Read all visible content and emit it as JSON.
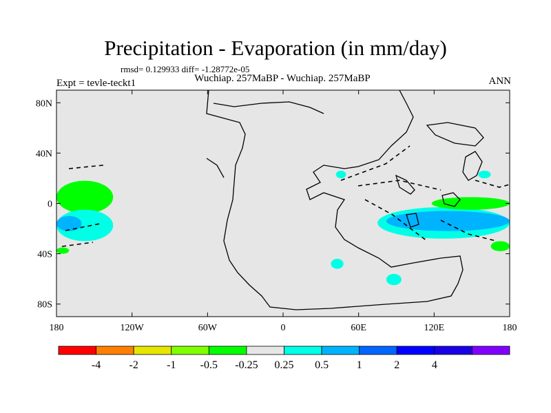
{
  "chart_data": {
    "type": "contour_map",
    "title": "Precipitation - Evaporation (in mm/day)",
    "stats": "rmsd= 0.129933 diff= -1.28772e-05",
    "left_label": "Expt = tevle-teckt1",
    "center_label": "Wuchiap. 257MaBP - Wuchiap. 257MaBP",
    "right_label": "ANN",
    "x_axis": {
      "range": [
        -180,
        180
      ],
      "ticks": [
        {
          "value": -180,
          "label": "180"
        },
        {
          "value": -120,
          "label": "120W"
        },
        {
          "value": -60,
          "label": "60W"
        },
        {
          "value": 0,
          "label": "0"
        },
        {
          "value": 60,
          "label": "60E"
        },
        {
          "value": 120,
          "label": "120E"
        },
        {
          "value": 180,
          "label": "180"
        }
      ]
    },
    "y_axis": {
      "range": [
        -90,
        90
      ],
      "ticks": [
        {
          "value": 80,
          "label": "80N"
        },
        {
          "value": 40,
          "label": "40N"
        },
        {
          "value": 0,
          "label": "0"
        },
        {
          "value": -40,
          "label": "40S"
        },
        {
          "value": -80,
          "label": "80S"
        }
      ]
    },
    "colorbar": {
      "colors": [
        "#ff0000",
        "#ff8000",
        "#e6e600",
        "#80ff00",
        "#00ff00",
        "#e6e6e6",
        "#00ffe6",
        "#00b3ff",
        "#0066ff",
        "#0000ff",
        "#1a00e6",
        "#8000ff"
      ],
      "labels": [
        "-4",
        "-2",
        "-1",
        "-0.5",
        "-0.25",
        "0.25",
        "0.5",
        "1",
        "2",
        "4"
      ]
    },
    "background_color": "#e6e6e6",
    "anomaly_regions": [
      {
        "level": "-0.25",
        "color": "#00ff00",
        "lon": [
          -180,
          -135
        ],
        "lat": [
          -8,
          18
        ]
      },
      {
        "level": "0.25",
        "color": "#00ffe6",
        "lon": [
          -180,
          -135
        ],
        "lat": [
          -30,
          -5
        ]
      },
      {
        "level": "0.5",
        "color": "#00b3ff",
        "lon": [
          -180,
          -160
        ],
        "lat": [
          -22,
          -10
        ]
      },
      {
        "level": "0.25",
        "color": "#00ffe6",
        "lon": [
          75,
          180
        ],
        "lat": [
          -28,
          -3
        ]
      },
      {
        "level": "0.5",
        "color": "#00b3ff",
        "lon": [
          82,
          180
        ],
        "lat": [
          -22,
          -6
        ]
      },
      {
        "level": "-0.25",
        "color": "#00ff00",
        "lon": [
          118,
          180
        ],
        "lat": [
          -5,
          5
        ]
      },
      {
        "level": "-0.25",
        "color": "#00ff00",
        "lon": [
          165,
          180
        ],
        "lat": [
          -38,
          -30
        ]
      },
      {
        "level": "0.25",
        "color": "#00ffe6",
        "lon": [
          38,
          48
        ],
        "lat": [
          -52,
          -44
        ]
      },
      {
        "level": "0.25",
        "color": "#00ffe6",
        "lon": [
          82,
          94
        ],
        "lat": [
          -65,
          -56
        ]
      },
      {
        "level": "-0.25",
        "color": "#00ff00",
        "lon": [
          -180,
          -170
        ],
        "lat": [
          -40,
          -35
        ]
      },
      {
        "level": "0.25",
        "color": "#00ffe6",
        "lon": [
          42,
          50
        ],
        "lat": [
          20,
          26
        ]
      },
      {
        "level": "0.25",
        "color": "#00ffe6",
        "lon": [
          155,
          165
        ],
        "lat": [
          20,
          26
        ]
      }
    ]
  }
}
